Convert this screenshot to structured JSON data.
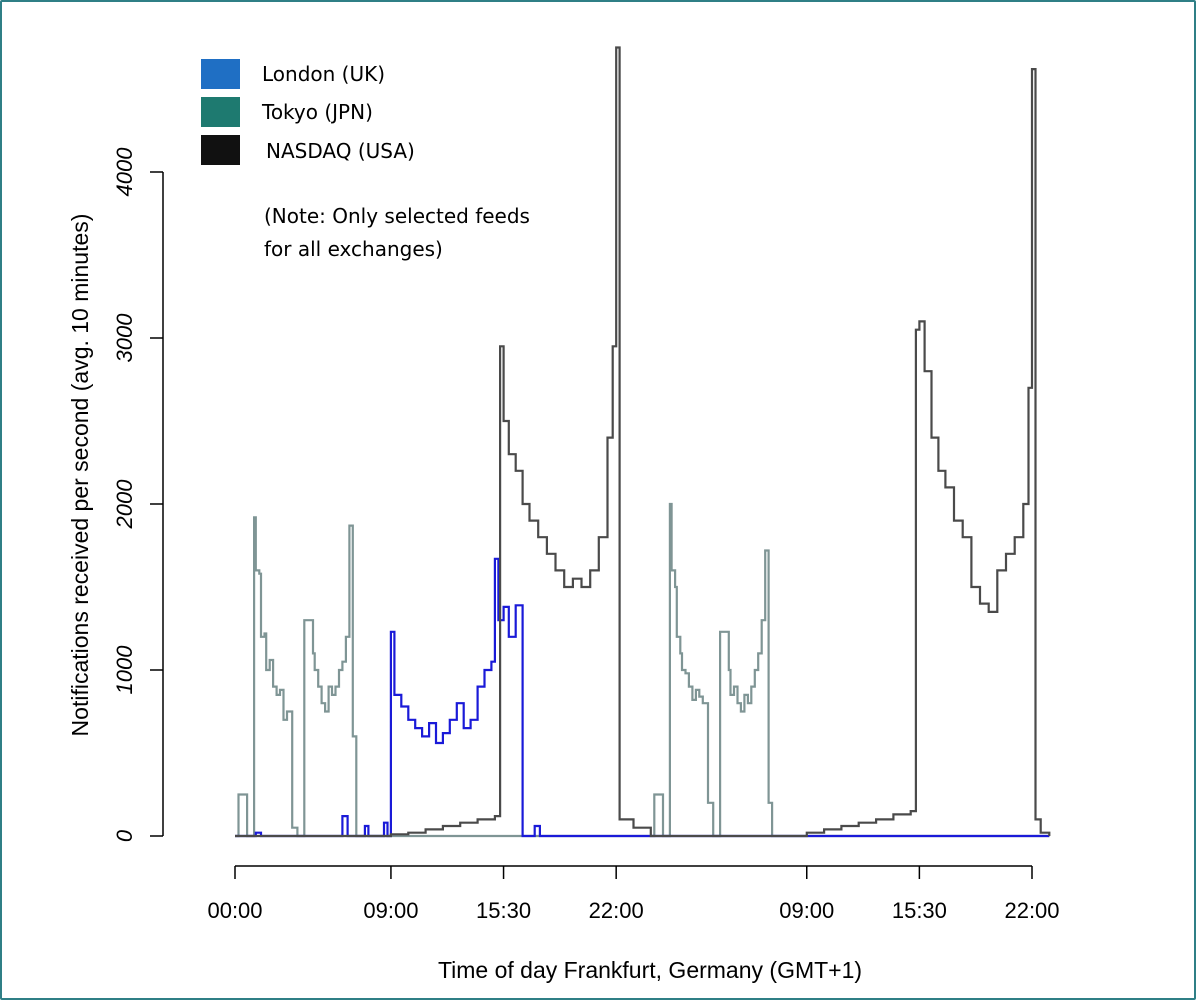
{
  "chart_data": {
    "type": "line",
    "title": "",
    "xlabel": "Time of day Frankfurt, Germany (GMT+1)",
    "ylabel": "Notifications received per second (avg. 10 minutes)",
    "ylim": [
      0,
      4000
    ],
    "yticks": [
      "0",
      "1000",
      "2000",
      "3000",
      "4000"
    ],
    "xticks": [
      "00:00",
      "09:00",
      "15:30",
      "22:00",
      "09:00",
      "15:30",
      "22:00"
    ],
    "xlim_hours": [
      0,
      47
    ],
    "xtick_positions_hours": [
      0,
      9,
      15.5,
      22,
      33,
      39.5,
      46
    ],
    "legend": [
      {
        "name": "London (UK)",
        "color": "#1f6fc4"
      },
      {
        "name": "Tokyo (JPN)",
        "color": "#1e7a70"
      },
      {
        "name": "NASDAQ (USA)",
        "color": "#111111"
      }
    ],
    "note": [
      "(Note: Only selected feeds",
      "for all exchanges)"
    ],
    "grid": false,
    "series": [
      {
        "name": "Tokyo (JPN)",
        "color": "#7f9595",
        "x": [
          0,
          0.2,
          0.3,
          0.7,
          0.8,
          1.1,
          1.2,
          1.4,
          1.5,
          1.7,
          1.8,
          2.0,
          2.2,
          2.4,
          2.6,
          2.8,
          3.0,
          3.3,
          3.6,
          3.8,
          4.0,
          4.5,
          4.6,
          4.8,
          5.0,
          5.2,
          5.4,
          5.6,
          5.8,
          6.0,
          6.2,
          6.4,
          6.6,
          6.8,
          7.0,
          7.1,
          7.3,
          7.5,
          24,
          24.2,
          24.3,
          24.7,
          24.8,
          25.1,
          25.2,
          25.4,
          25.5,
          25.7,
          25.8,
          26.0,
          26.2,
          26.4,
          26.6,
          26.8,
          27.0,
          27.3,
          27.6,
          27.8,
          28.0,
          28.5,
          28.6,
          28.8,
          29.0,
          29.2,
          29.4,
          29.6,
          29.8,
          30.0,
          30.2,
          30.4,
          30.6,
          30.8,
          31.0,
          31.1,
          31.3,
          31.5,
          47
        ],
        "y": [
          0,
          250,
          250,
          0,
          0,
          1920,
          1600,
          1580,
          1200,
          1220,
          1000,
          1060,
          900,
          850,
          880,
          700,
          750,
          50,
          0,
          0,
          1300,
          1100,
          1000,
          900,
          800,
          750,
          900,
          850,
          900,
          1000,
          1050,
          1200,
          1870,
          600,
          0,
          0,
          0,
          0,
          0,
          250,
          250,
          0,
          0,
          2000,
          1600,
          1500,
          1200,
          1100,
          1000,
          980,
          900,
          820,
          880,
          840,
          800,
          200,
          0,
          0,
          1230,
          1000,
          850,
          900,
          800,
          750,
          850,
          800,
          900,
          1000,
          1100,
          1300,
          1720,
          200,
          0,
          0,
          0,
          0,
          0
        ]
      },
      {
        "name": "London (UK)",
        "color": "#1a1ad8",
        "x": [
          0,
          1.2,
          1.5,
          6.0,
          6.2,
          6.5,
          7.5,
          7.7,
          8.0,
          8.6,
          8.8,
          9.0,
          9.2,
          9.6,
          10.0,
          10.4,
          10.8,
          11.2,
          11.6,
          12.0,
          12.4,
          12.8,
          13.2,
          13.6,
          14.0,
          14.4,
          14.8,
          15.0,
          15.2,
          15.5,
          15.8,
          16.2,
          16.6,
          17.0,
          17.3,
          17.6,
          18.0,
          18.5,
          47
        ],
        "y": [
          0,
          20,
          0,
          0,
          120,
          0,
          60,
          0,
          0,
          80,
          0,
          1230,
          850,
          780,
          700,
          650,
          600,
          680,
          560,
          620,
          700,
          800,
          650,
          700,
          900,
          1000,
          1050,
          1670,
          1300,
          1380,
          1200,
          1390,
          0,
          0,
          60,
          0,
          0,
          0,
          0
        ]
      },
      {
        "name": "NASDAQ (USA)",
        "color": "#4a4a4a",
        "x": [
          0,
          8.0,
          9.0,
          10,
          11,
          12,
          13,
          14,
          15.0,
          15.3,
          15.5,
          15.8,
          16.2,
          16.6,
          17.0,
          17.5,
          18.0,
          18.5,
          19.0,
          19.5,
          20.0,
          20.5,
          21.0,
          21.5,
          21.8,
          22.0,
          22.2,
          23.0,
          24.0,
          32.0,
          33.0,
          34.0,
          35.0,
          36.0,
          37.0,
          38.0,
          39.0,
          39.3,
          39.5,
          39.8,
          40.2,
          40.6,
          41.0,
          41.5,
          42.0,
          42.5,
          43.0,
          43.5,
          44.0,
          44.5,
          45.0,
          45.5,
          45.8,
          46.0,
          46.2,
          46.5,
          47.0
        ],
        "y": [
          0,
          0,
          10,
          20,
          40,
          60,
          80,
          100,
          120,
          2950,
          2500,
          2300,
          2200,
          2000,
          1900,
          1800,
          1700,
          1600,
          1500,
          1550,
          1500,
          1600,
          1800,
          2400,
          2950,
          4750,
          100,
          50,
          0,
          0,
          20,
          40,
          60,
          80,
          100,
          130,
          150,
          3050,
          3100,
          2800,
          2400,
          2200,
          2100,
          1900,
          1800,
          1500,
          1400,
          1350,
          1600,
          1700,
          1800,
          2000,
          2700,
          4620,
          100,
          20,
          0
        ]
      }
    ]
  }
}
